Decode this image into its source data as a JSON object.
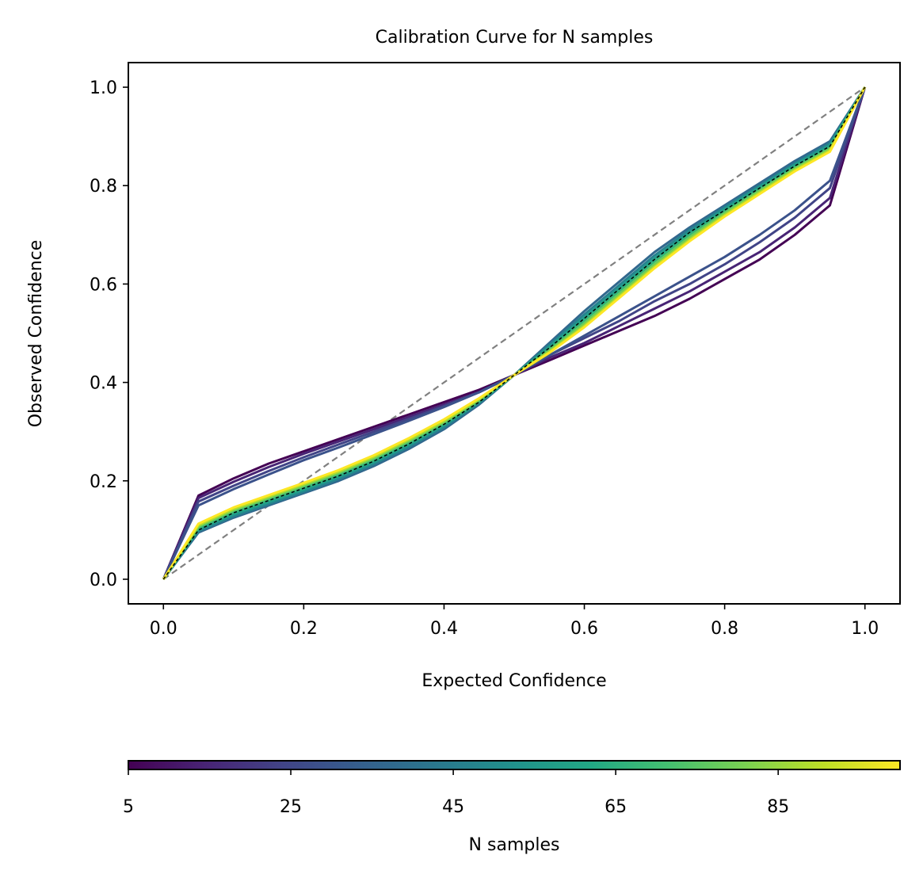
{
  "chart_data": {
    "type": "line",
    "title": "Calibration Curve for N samples",
    "xlabel": "Expected Confidence",
    "ylabel": "Observed Confidence",
    "xlim": [
      -0.05,
      1.05
    ],
    "ylim": [
      -0.05,
      1.05
    ],
    "xticks": [
      0.0,
      0.2,
      0.4,
      0.6,
      0.8,
      1.0
    ],
    "xtick_labels": [
      "0.0",
      "0.2",
      "0.4",
      "0.6",
      "0.8",
      "1.0"
    ],
    "yticks": [
      0.0,
      0.2,
      0.4,
      0.6,
      0.8,
      1.0
    ],
    "ytick_labels": [
      "0.0",
      "0.2",
      "0.4",
      "0.6",
      "0.8",
      "1.0"
    ],
    "grid": false,
    "x": [
      0.0,
      0.05,
      0.1,
      0.15,
      0.2,
      0.25,
      0.3,
      0.35,
      0.4,
      0.45,
      0.5,
      0.55,
      0.6,
      0.65,
      0.7,
      0.75,
      0.8,
      0.85,
      0.9,
      0.95,
      1.0
    ],
    "reference_line": {
      "style": "dashed",
      "color": "#808080",
      "x": [
        0.0,
        1.0
      ],
      "y": [
        0.0,
        1.0
      ]
    },
    "mean_line": {
      "style": "dashed",
      "color": "#000000",
      "y": [
        0.0,
        0.1,
        0.135,
        0.16,
        0.185,
        0.21,
        0.24,
        0.275,
        0.315,
        0.36,
        0.415,
        0.47,
        0.53,
        0.59,
        0.65,
        0.705,
        0.75,
        0.795,
        0.84,
        0.88,
        1.0
      ]
    },
    "series": [
      {
        "n": 5,
        "color": "#440154",
        "y": [
          0.0,
          0.17,
          0.205,
          0.235,
          0.26,
          0.285,
          0.31,
          0.335,
          0.36,
          0.385,
          0.415,
          0.445,
          0.475,
          0.505,
          0.535,
          0.57,
          0.61,
          0.65,
          0.7,
          0.76,
          1.0
        ]
      },
      {
        "n": 10,
        "color": "#482475",
        "y": [
          0.0,
          0.165,
          0.198,
          0.228,
          0.255,
          0.28,
          0.305,
          0.33,
          0.355,
          0.38,
          0.415,
          0.45,
          0.48,
          0.515,
          0.55,
          0.585,
          0.625,
          0.665,
          0.715,
          0.775,
          1.0
        ]
      },
      {
        "n": 15,
        "color": "#414487",
        "y": [
          0.0,
          0.158,
          0.19,
          0.22,
          0.248,
          0.274,
          0.3,
          0.326,
          0.352,
          0.38,
          0.415,
          0.455,
          0.49,
          0.525,
          0.565,
          0.6,
          0.64,
          0.685,
          0.735,
          0.795,
          1.0
        ]
      },
      {
        "n": 20,
        "color": "#3b528b",
        "y": [
          0.0,
          0.15,
          0.183,
          0.213,
          0.242,
          0.268,
          0.295,
          0.322,
          0.35,
          0.38,
          0.415,
          0.455,
          0.495,
          0.535,
          0.575,
          0.615,
          0.655,
          0.7,
          0.75,
          0.81,
          1.0
        ]
      },
      {
        "n": 30,
        "color": "#31688e",
        "y": [
          0.0,
          0.095,
          0.125,
          0.15,
          0.175,
          0.2,
          0.23,
          0.265,
          0.305,
          0.355,
          0.415,
          0.48,
          0.545,
          0.605,
          0.665,
          0.715,
          0.76,
          0.805,
          0.85,
          0.89,
          1.0
        ]
      },
      {
        "n": 40,
        "color": "#26828e",
        "y": [
          0.0,
          0.098,
          0.128,
          0.153,
          0.178,
          0.204,
          0.234,
          0.269,
          0.309,
          0.358,
          0.415,
          0.476,
          0.538,
          0.598,
          0.658,
          0.71,
          0.756,
          0.8,
          0.845,
          0.886,
          1.0
        ]
      },
      {
        "n": 50,
        "color": "#1f9e89",
        "y": [
          0.0,
          0.101,
          0.132,
          0.157,
          0.182,
          0.208,
          0.238,
          0.273,
          0.313,
          0.36,
          0.415,
          0.472,
          0.532,
          0.592,
          0.652,
          0.705,
          0.752,
          0.797,
          0.842,
          0.882,
          1.0
        ]
      },
      {
        "n": 60,
        "color": "#35b779",
        "y": [
          0.0,
          0.104,
          0.136,
          0.161,
          0.186,
          0.212,
          0.242,
          0.277,
          0.316,
          0.362,
          0.415,
          0.468,
          0.526,
          0.586,
          0.646,
          0.7,
          0.748,
          0.793,
          0.838,
          0.878,
          1.0
        ]
      },
      {
        "n": 75,
        "color": "#6ece58",
        "y": [
          0.0,
          0.107,
          0.14,
          0.165,
          0.19,
          0.216,
          0.246,
          0.281,
          0.319,
          0.364,
          0.415,
          0.465,
          0.52,
          0.58,
          0.64,
          0.695,
          0.744,
          0.79,
          0.835,
          0.875,
          1.0
        ]
      },
      {
        "n": 85,
        "color": "#b5de2b",
        "y": [
          0.0,
          0.11,
          0.143,
          0.168,
          0.193,
          0.219,
          0.249,
          0.284,
          0.322,
          0.366,
          0.415,
          0.462,
          0.515,
          0.575,
          0.635,
          0.69,
          0.74,
          0.786,
          0.832,
          0.872,
          1.0
        ]
      },
      {
        "n": 95,
        "color": "#fde725",
        "y": [
          0.0,
          0.113,
          0.146,
          0.171,
          0.196,
          0.222,
          0.252,
          0.287,
          0.325,
          0.368,
          0.415,
          0.46,
          0.512,
          0.572,
          0.632,
          0.687,
          0.737,
          0.783,
          0.829,
          0.869,
          1.0
        ]
      }
    ],
    "colorbar": {
      "label": "N samples",
      "orientation": "horizontal",
      "colormap": "viridis",
      "range": [
        5,
        100
      ],
      "ticks": [
        5,
        25,
        45,
        65,
        85
      ],
      "tick_labels": [
        "5",
        "25",
        "45",
        "65",
        "85"
      ],
      "stops": [
        "#440154",
        "#482475",
        "#414487",
        "#355f8d",
        "#2a788e",
        "#21918c",
        "#22a884",
        "#44bf70",
        "#7ad151",
        "#bddf26",
        "#fde725"
      ]
    }
  }
}
